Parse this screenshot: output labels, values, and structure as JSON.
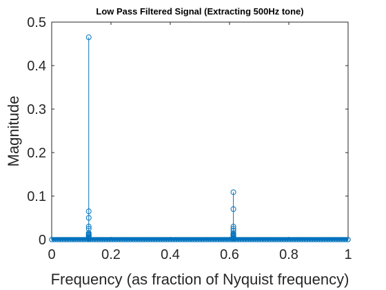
{
  "chart_data": {
    "type": "stem",
    "title": "Low Pass Filtered Signal (Extracting 500Hz tone)",
    "xlabel": "Frequency (as fraction of Nyquist frequency)",
    "ylabel": "Magnitude",
    "xlim": [
      0,
      1
    ],
    "ylim": [
      0,
      0.5
    ],
    "xticks": [
      "0",
      "0.2",
      "0.4",
      "0.6",
      "0.8",
      "1"
    ],
    "yticks": [
      "0",
      "0.1",
      "0.2",
      "0.3",
      "0.4",
      "0.5"
    ],
    "grid": false,
    "series_color": "#0072BD",
    "peaks": [
      {
        "x": 0.125,
        "values": [
          0.465,
          0.065,
          0.05,
          0.03,
          0.025,
          0.015,
          0.01,
          0.005
        ]
      },
      {
        "x": 0.613,
        "values": [
          0.109,
          0.07,
          0.03,
          0.025,
          0.02,
          0.012,
          0.008,
          0.004
        ]
      }
    ],
    "baseline": {
      "x_start": 0.0,
      "x_end": 1.0,
      "value": 0.0
    }
  }
}
